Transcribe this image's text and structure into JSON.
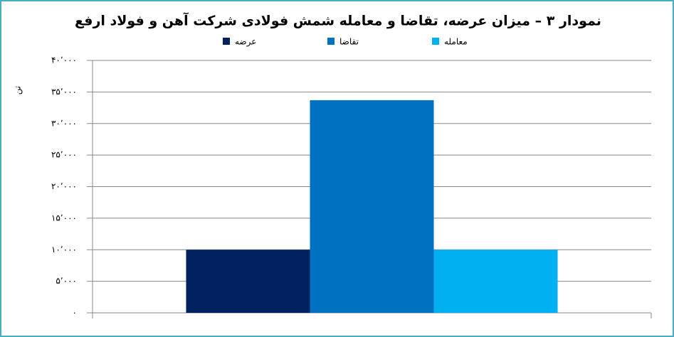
{
  "chart_data": {
    "type": "bar",
    "title": "نمودار ۳ – میزان عرضه، تقاضا و معامله شمش فولادی شرکت آهن و فولاد ارفع",
    "y_label": "تن",
    "categories": [
      null
    ],
    "series": [
      {
        "name": "عرضه",
        "color": "#002060",
        "values": [
          10000
        ]
      },
      {
        "name": "تقاضا",
        "color": "#0070c0",
        "values": [
          33700
        ]
      },
      {
        "name": "معامله",
        "color": "#00b0f0",
        "values": [
          10000
        ]
      }
    ],
    "ylim": [
      0,
      40000
    ],
    "yticks": [
      {
        "value": 0,
        "label": "۰"
      },
      {
        "value": 5000,
        "label": "۵٬۰۰۰"
      },
      {
        "value": 10000,
        "label": "۱۰٬۰۰۰"
      },
      {
        "value": 15000,
        "label": "۱۵٬۰۰۰"
      },
      {
        "value": 20000,
        "label": "۲۰٬۰۰۰"
      },
      {
        "value": 25000,
        "label": "۲۵٬۰۰۰"
      },
      {
        "value": 30000,
        "label": "۳۰٬۰۰۰"
      },
      {
        "value": 35000,
        "label": "۳۵٬۰۰۰"
      },
      {
        "value": 40000,
        "label": "۴۰٬۰۰۰"
      }
    ],
    "grid": true
  }
}
